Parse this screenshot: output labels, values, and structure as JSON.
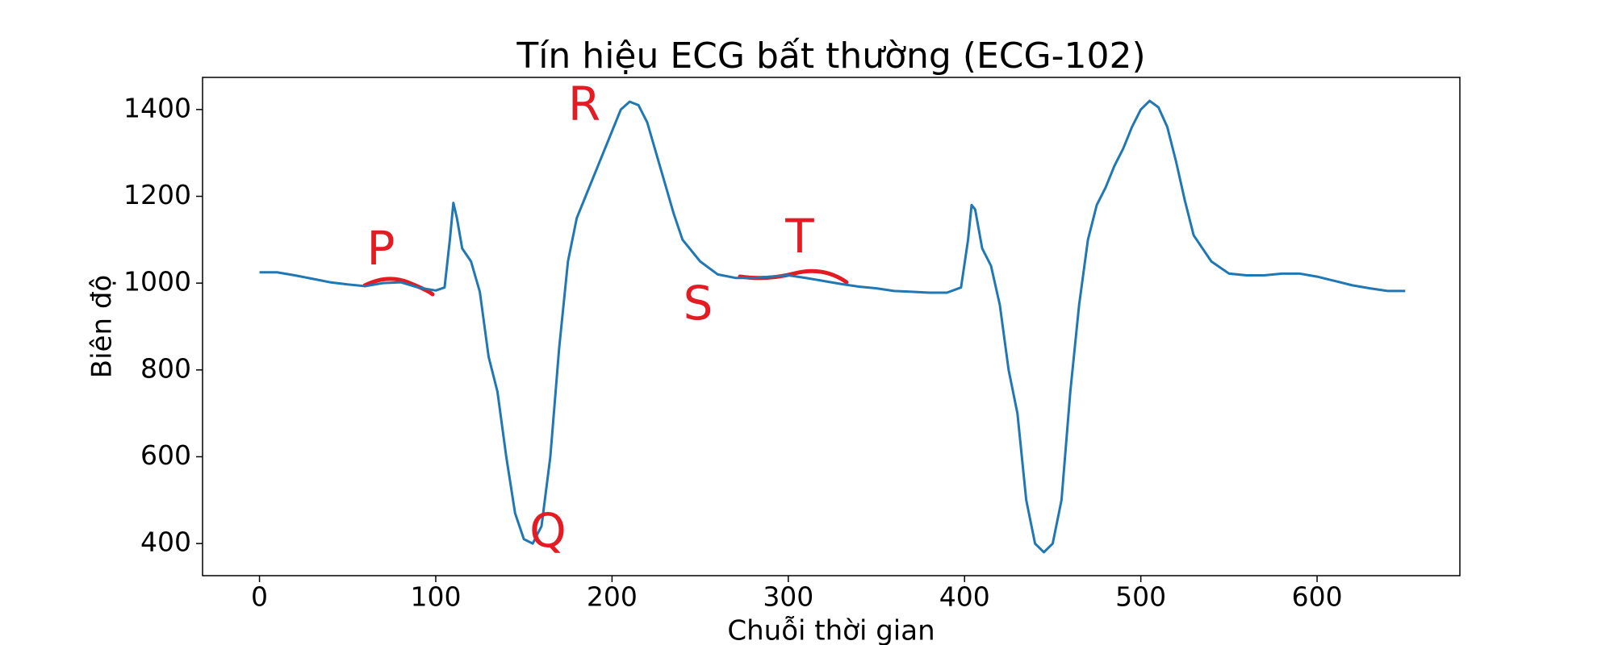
{
  "chart_data": {
    "type": "line",
    "title": "Tín hiệu ECG bất thường (ECG-102)",
    "xlabel": "Chuỗi thời gian",
    "ylabel": "Biên độ",
    "x": [
      0,
      10,
      20,
      30,
      40,
      50,
      60,
      70,
      80,
      90,
      100,
      105,
      108,
      110,
      112,
      115,
      120,
      125,
      130,
      135,
      140,
      145,
      150,
      155,
      160,
      165,
      170,
      175,
      180,
      185,
      190,
      195,
      200,
      205,
      210,
      215,
      220,
      225,
      230,
      235,
      240,
      250,
      260,
      270,
      280,
      290,
      300,
      310,
      320,
      330,
      340,
      350,
      360,
      370,
      380,
      390,
      398,
      402,
      404,
      406,
      410,
      415,
      420,
      425,
      430,
      435,
      440,
      445,
      450,
      455,
      460,
      465,
      470,
      475,
      480,
      485,
      490,
      495,
      500,
      505,
      510,
      515,
      520,
      525,
      530,
      540,
      550,
      560,
      570,
      580,
      590,
      600,
      610,
      620,
      630,
      640,
      650
    ],
    "series": [
      {
        "name": "ECG-102",
        "color": "#1f77b4",
        "values": [
          1025,
          1025,
          1018,
          1010,
          1002,
          997,
          993,
          1000,
          1002,
          990,
          983,
          990,
          1100,
          1185,
          1150,
          1080,
          1050,
          980,
          830,
          750,
          600,
          470,
          410,
          400,
          440,
          600,
          850,
          1050,
          1150,
          1200,
          1250,
          1300,
          1350,
          1400,
          1418,
          1410,
          1370,
          1300,
          1230,
          1160,
          1100,
          1050,
          1020,
          1012,
          1012,
          1015,
          1018,
          1012,
          1005,
          998,
          992,
          988,
          982,
          980,
          978,
          978,
          990,
          1100,
          1180,
          1170,
          1080,
          1040,
          950,
          800,
          700,
          500,
          400,
          380,
          400,
          500,
          750,
          950,
          1100,
          1180,
          1220,
          1270,
          1310,
          1360,
          1400,
          1420,
          1405,
          1360,
          1280,
          1190,
          1110,
          1050,
          1022,
          1018,
          1018,
          1022,
          1022,
          1015,
          1005,
          995,
          988,
          982,
          982
        ]
      }
    ],
    "xlim": [
      -32.3,
      681
    ],
    "ylim": [
      326,
      1474
    ],
    "xticks": [
      0,
      100,
      200,
      300,
      400,
      500,
      600
    ],
    "yticks": [
      400,
      600,
      800,
      1000,
      1200,
      1400
    ],
    "grid": false,
    "annotations": [
      "P",
      "R",
      "Q",
      "S",
      "T"
    ]
  }
}
